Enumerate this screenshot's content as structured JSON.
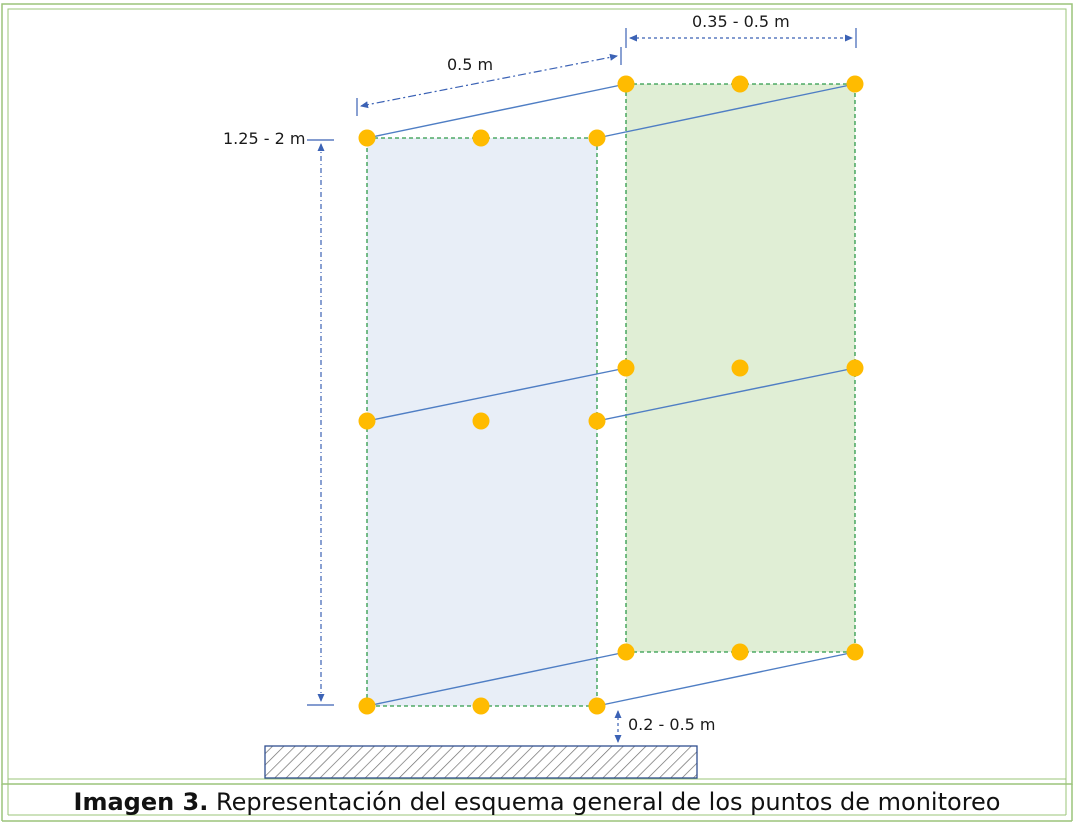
{
  "labels": {
    "top_right_width": "0.35 - 0.5 m",
    "depth": "0.5 m",
    "height": "1.25 - 2 m",
    "ground_clearance": "0.2 - 0.5 m"
  },
  "caption": {
    "lead": "Imagen 3.",
    "text": " Representación del esquema general de los puntos de monitoreo"
  },
  "colors": {
    "border": "#9bc47a",
    "front_panel_fill": "#e8eef7",
    "back_panel_fill": "#e0eed5",
    "panel_outline": "#2e9a4a",
    "connector_line": "#4f7ec4",
    "dimension_line": "#3b62b5",
    "point": "#ffbb00",
    "ground_hatch": "#6e6e6e",
    "ground_outline": "#2f4f8f"
  }
}
